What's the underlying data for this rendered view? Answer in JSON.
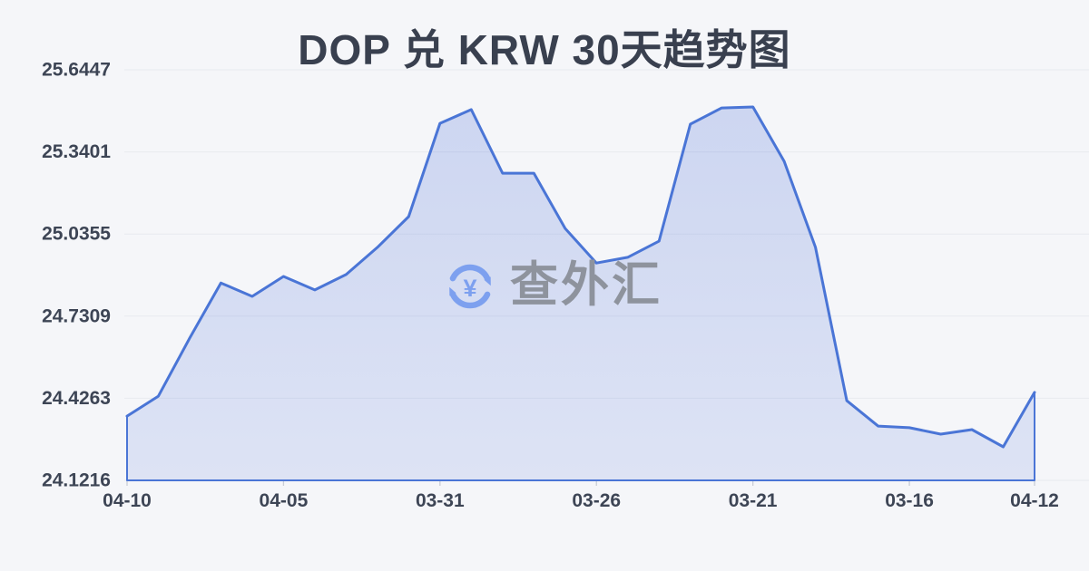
{
  "title": "DOP 兑 KRW 30天趋势图",
  "watermark": {
    "text": "查外汇",
    "icon": "currency-exchange-icon",
    "currency_symbol": "¥",
    "icon_color": "#7da0ef",
    "text_color": "#8e939d"
  },
  "colors": {
    "background": "#f5f6f9",
    "line": "#4a75d6",
    "area_fill_top": "#4d70d83d",
    "area_fill_bottom": "#4d70d824",
    "gridline": "#e8eaef",
    "axis_tick": "#c9cdd6",
    "axis_text": "#3d4555",
    "title_text": "#39404f"
  },
  "chart_data": {
    "type": "area",
    "title": "DOP 兑 KRW 30天趋势图",
    "xlabel": "",
    "ylabel": "",
    "grid": true,
    "legend": false,
    "ylim": [
      24.1216,
      25.6447
    ],
    "y_tick_labels": [
      "25.6447",
      "25.3401",
      "25.0355",
      "24.7309",
      "24.4263",
      "24.1216"
    ],
    "x_tick_labels": [
      "04-10",
      "04-05",
      "03-31",
      "03-26",
      "03-21",
      "03-16",
      "04-12"
    ],
    "x_tick_indices": [
      0,
      5,
      10,
      15,
      20,
      25,
      29
    ],
    "values": [
      24.36,
      24.434,
      24.649,
      24.854,
      24.804,
      24.878,
      24.828,
      24.885,
      24.986,
      25.1,
      25.446,
      25.497,
      25.261,
      25.261,
      25.056,
      24.928,
      24.949,
      25.009,
      25.443,
      25.503,
      25.507,
      25.305,
      24.986,
      24.417,
      24.323,
      24.317,
      24.293,
      24.31,
      24.246,
      24.448
    ]
  }
}
